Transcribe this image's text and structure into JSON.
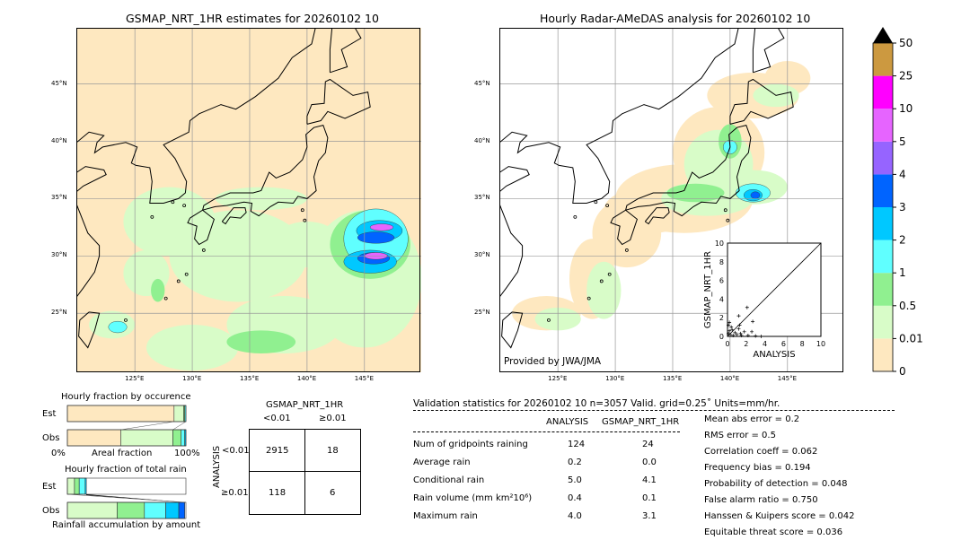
{
  "left_map": {
    "title": "GSMAP_NRT_1HR estimates for 20260102 10"
  },
  "right_map": {
    "title": "Hourly Radar-AMeDAS analysis for 20260102 10",
    "credit": "Provided by JWA/JMA"
  },
  "lon_ticks": [
    "125°E",
    "130°E",
    "135°E",
    "140°E",
    "145°E"
  ],
  "lat_ticks": [
    "25°N",
    "30°N",
    "35°N",
    "40°N",
    "45°N"
  ],
  "colorbar": {
    "labels": [
      "0",
      "0.01",
      "0.5",
      "1",
      "2",
      "3",
      "4",
      "5",
      "10",
      "25",
      "50"
    ],
    "colors": [
      "#fee8c0",
      "#d8fcc8",
      "#90f090",
      "#60ffff",
      "#00c8ff",
      "#0064ff",
      "#9664ff",
      "#e664ff",
      "#ff00ff",
      "#cc9940"
    ],
    "extend_color": "#000000"
  },
  "chart_data": [
    {
      "type": "scatter",
      "xlabel": "ANALYSIS",
      "ylabel": "GSMAP_NRT_1HR",
      "xlim": [
        0,
        10
      ],
      "ylim": [
        0,
        10
      ],
      "ticks": [
        "0",
        "2",
        "4",
        "6",
        "8",
        "10"
      ],
      "points": [
        [
          2.1,
          3.1
        ],
        [
          1.2,
          2.2
        ],
        [
          2.7,
          1.6
        ],
        [
          1.3,
          1.2
        ],
        [
          1.8,
          0.5
        ],
        [
          2.6,
          0.5
        ],
        [
          0.2,
          1.5
        ],
        [
          0.4,
          1.0
        ],
        [
          0.5,
          0.7
        ],
        [
          0.8,
          0.4
        ],
        [
          1.0,
          0.2
        ],
        [
          1.5,
          0.1
        ],
        [
          2.2,
          0.1
        ],
        [
          3.0,
          0.05
        ],
        [
          3.6,
          0
        ],
        [
          0.1,
          0.3
        ],
        [
          0.3,
          0.2
        ],
        [
          1.2,
          0.8
        ],
        [
          0.1,
          1.2
        ],
        [
          0.6,
          0.1
        ],
        [
          0.2,
          0.6
        ],
        [
          1.4,
          0.3
        ]
      ]
    },
    {
      "type": "bar",
      "title": "Hourly fraction by occurence",
      "xlabel": "Areal fraction",
      "x_ticks": [
        "0%",
        "100%"
      ],
      "categories": [
        "Est",
        "Obs"
      ],
      "series": [
        {
          "values": [
            0.9,
            0.45
          ]
        },
        {
          "values": [
            0.08,
            0.44
          ]
        },
        {
          "values": [
            0.01,
            0.07
          ]
        },
        {
          "values": [
            0.01,
            0.03
          ]
        },
        {
          "values": [
            0.0,
            0.01
          ]
        }
      ]
    },
    {
      "type": "bar",
      "title": "Hourly fraction of total rain",
      "xlabel": "Rainfall accumulation by amount",
      "categories": [
        "Est",
        "Obs"
      ],
      "series": [
        {
          "values": [
            0.06,
            0.42
          ]
        },
        {
          "values": [
            0.04,
            0.23
          ]
        },
        {
          "values": [
            0.05,
            0.18
          ]
        },
        {
          "values": [
            0.01,
            0.11
          ]
        },
        {
          "values": [
            0.0,
            0.05
          ]
        }
      ]
    },
    {
      "type": "table",
      "title": "GSMAP_NRT_1HR",
      "col_headers": [
        "<0.01",
        "≥0.01"
      ],
      "row_label": "ANALYSIS",
      "row_headers": [
        "<0.01",
        "≥0.01"
      ],
      "cells": [
        [
          "2915",
          "18"
        ],
        [
          "118",
          "6"
        ]
      ]
    }
  ],
  "stats": {
    "header": "Validation statistics for 20260102 10  n=3057 Valid. grid=0.25˚ Units=mm/hr.",
    "col_headers": [
      "ANALYSIS",
      "GSMAP_NRT_1HR"
    ],
    "rows": [
      {
        "label": "Num of gridpoints raining",
        "a": "124",
        "g": "24"
      },
      {
        "label": "Average rain",
        "a": "0.2",
        "g": "0.0"
      },
      {
        "label": "Conditional rain",
        "a": "5.0",
        "g": "4.1"
      },
      {
        "label": "Rain volume (mm km²10⁶)",
        "a": "0.4",
        "g": "0.1"
      },
      {
        "label": "Maximum rain",
        "a": "4.0",
        "g": "3.1"
      }
    ],
    "scores": [
      "Mean abs error =    0.2",
      "RMS error =    0.5",
      "Correlation coeff =  0.062",
      "Frequency bias =  0.194",
      "Probability of detection =  0.048",
      "False alarm ratio =  0.750",
      "Hanssen & Kuipers score =  0.042",
      "Equitable threat score =  0.036"
    ]
  }
}
